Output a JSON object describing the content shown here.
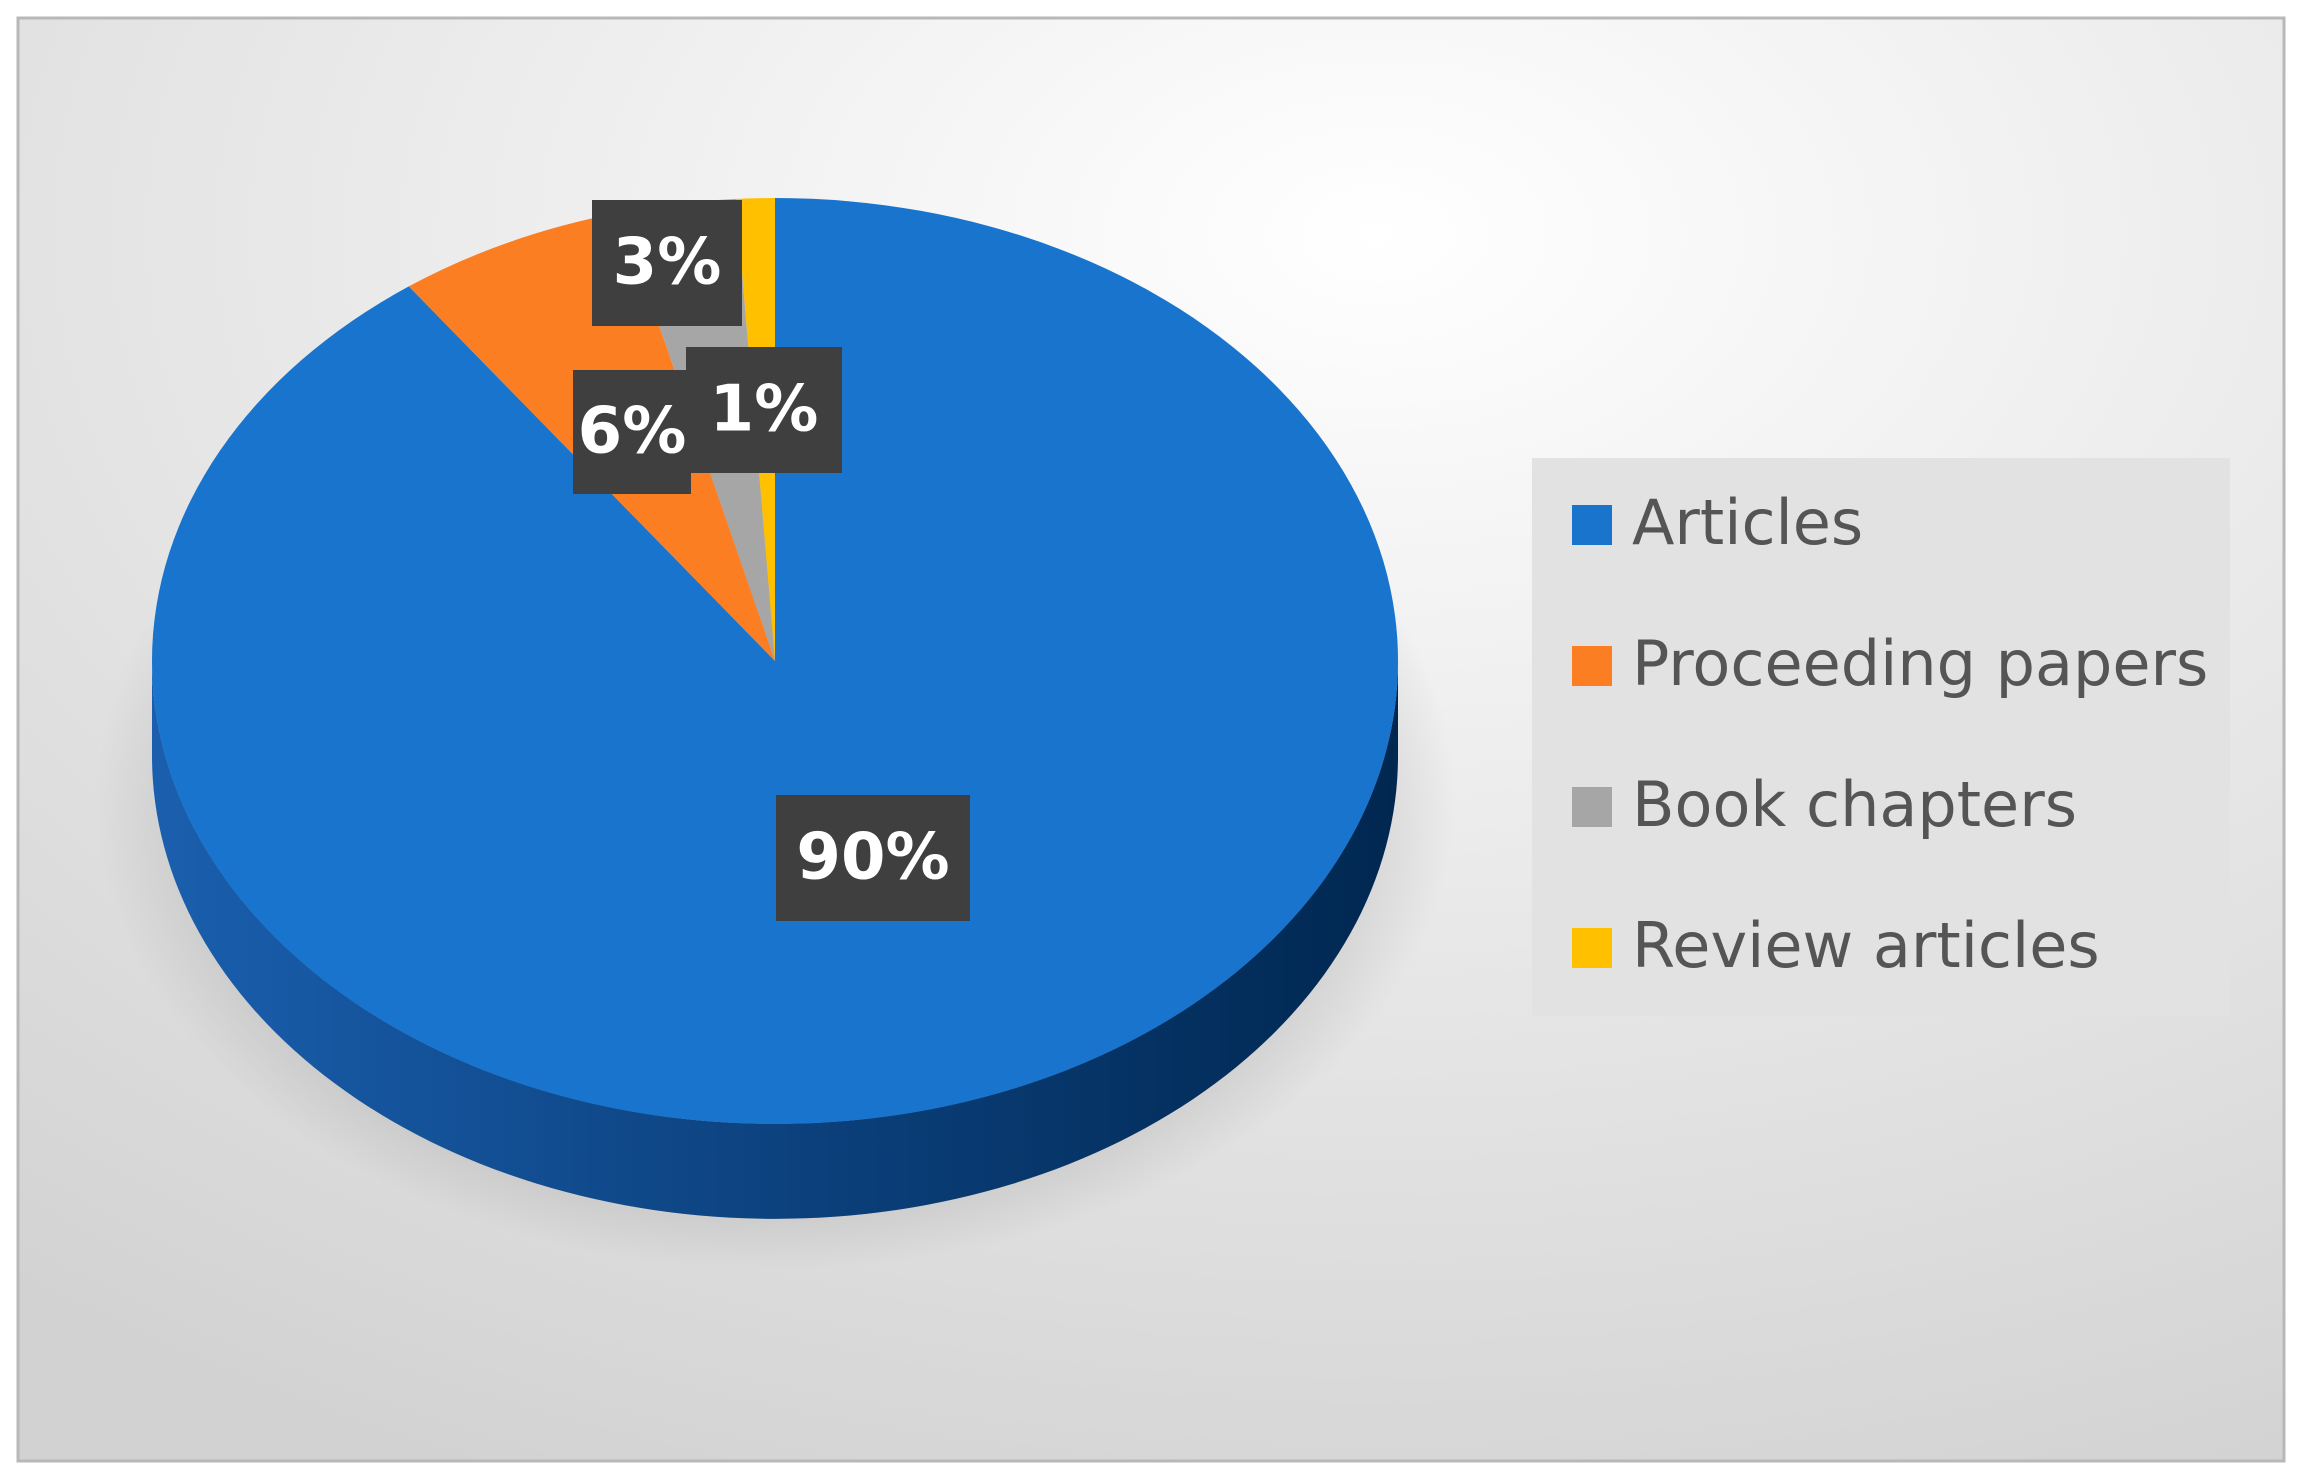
{
  "chart_data": {
    "type": "pie",
    "categories": [
      "Articles",
      "Proceeding papers",
      "Book chapters",
      "Review articles"
    ],
    "values": [
      90,
      6,
      3,
      1
    ],
    "value_labels": [
      "90%",
      "6%",
      "3%",
      "1%"
    ],
    "colors": [
      "#1874cd",
      "#fb7f22",
      "#a6a6a6",
      "#ffc000"
    ],
    "legend": "right"
  }
}
